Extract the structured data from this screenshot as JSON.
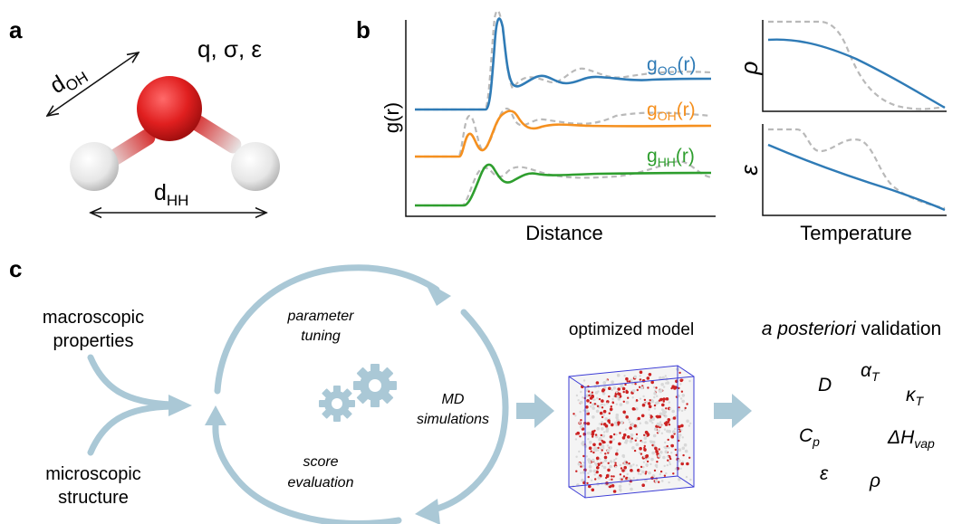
{
  "panels": {
    "a": {
      "letter": "a",
      "params": "q, σ, ε",
      "d_oh": {
        "base": "d",
        "sub": "OH"
      },
      "d_hh": {
        "base": "d",
        "sub": "HH"
      }
    },
    "b": {
      "letter": "b",
      "ylabel": "g(r)",
      "xlabel": "Distance",
      "series": [
        {
          "base": "g",
          "sub": "OO",
          "tail": "(r)",
          "color": "#2f7bb6"
        },
        {
          "base": "g",
          "sub": "OH",
          "tail": "(r)",
          "color": "#f5901f"
        },
        {
          "base": "g",
          "sub": "HH",
          "tail": "(r)",
          "color": "#2e9e2e"
        }
      ],
      "reference_color": "#b8b8b8",
      "rho_label": "ρ",
      "eps_label": "ε",
      "temp_xlabel": "Temperature"
    },
    "c": {
      "letter": "c",
      "macro": [
        "macroscopic",
        "properties"
      ],
      "micro": [
        "microscopic",
        "structure"
      ],
      "tuning": [
        "parameter",
        "tuning"
      ],
      "md": [
        "MD",
        "simulations"
      ],
      "score": [
        "score",
        "evaluation"
      ],
      "optimized": "optimized model",
      "validation_italic": "a posteriori",
      "validation_rest": " validation",
      "props": {
        "D": "D",
        "alpha": {
          "base": "α",
          "sub": "T"
        },
        "kappa": {
          "base": "κ",
          "sub": "T"
        },
        "cp": {
          "base": "C",
          "sub": "p"
        },
        "dh": {
          "base": "ΔH",
          "sub": "vap"
        },
        "eps": "ε",
        "rho": "ρ"
      },
      "flow_color": "#aac8d6"
    }
  }
}
